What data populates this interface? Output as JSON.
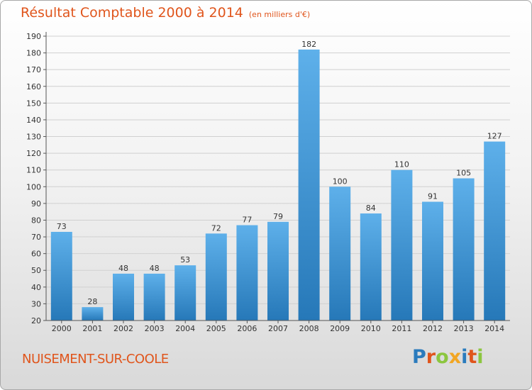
{
  "header": {
    "title": "Résultat Comptable 2000 à 2014",
    "unit": "(en milliers d'€)"
  },
  "footer": {
    "place": "NUISEMENT-SUR-COOLE"
  },
  "logo": {
    "text": "Proxiti",
    "letters": [
      {
        "ch": "P",
        "color": "#2a7bbd"
      },
      {
        "ch": "r",
        "color": "#e0551c"
      },
      {
        "ch": "o",
        "color": "#8cc63f"
      },
      {
        "ch": "x",
        "color": "#f2a623"
      },
      {
        "ch": "i",
        "color": "#2a7bbd"
      },
      {
        "ch": "t",
        "color": "#e0551c"
      },
      {
        "ch": "i",
        "color": "#8cc63f"
      }
    ]
  },
  "colors": {
    "bar_top": "#5eb0ea",
    "bar_bottom": "#2678b8",
    "title": "#e0551c",
    "grid": "#d0d0d0"
  },
  "chart_data": {
    "type": "bar",
    "categories": [
      "2000",
      "2001",
      "2002",
      "2003",
      "2004",
      "2005",
      "2006",
      "2007",
      "2008",
      "2009",
      "2010",
      "2011",
      "2012",
      "2013",
      "2014"
    ],
    "values": [
      73,
      28,
      48,
      48,
      53,
      72,
      77,
      79,
      182,
      100,
      84,
      110,
      91,
      105,
      127
    ],
    "yticks": [
      20,
      30,
      40,
      50,
      60,
      70,
      80,
      90,
      100,
      110,
      120,
      130,
      140,
      150,
      160,
      170,
      180,
      190
    ],
    "ylim": [
      20,
      190
    ],
    "grid": true,
    "legend": "none"
  }
}
